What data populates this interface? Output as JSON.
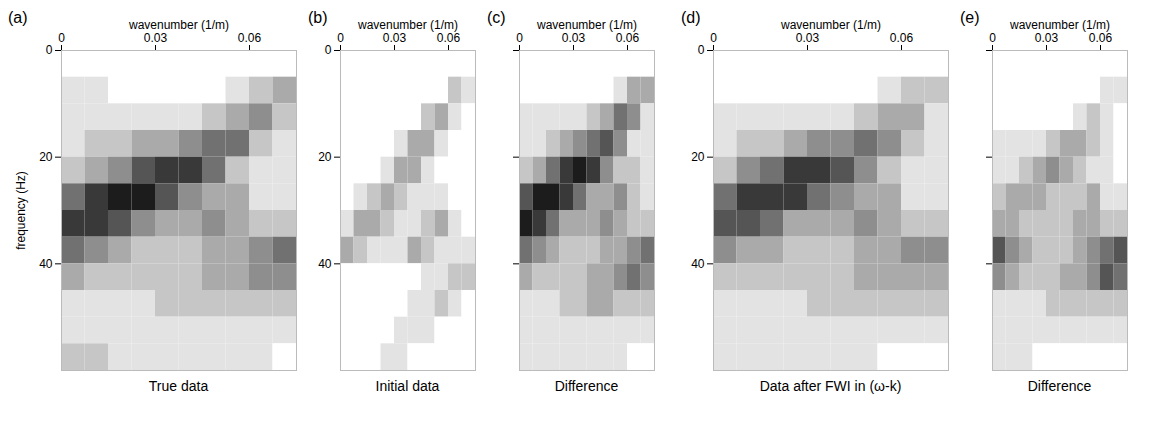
{
  "chart_data": [
    {
      "type": "heatmap",
      "panel": "(a)",
      "title": "True data",
      "x_label": "wavenumber (1/m)",
      "y_label": "frequency (Hz)",
      "xlim": [
        0,
        0.075
      ],
      "ylim": [
        0,
        60
      ],
      "xticks": [
        0,
        0.03,
        0.06
      ],
      "yticks": [
        0,
        20,
        40
      ],
      "x_edges": [
        0,
        0.0075,
        0.015,
        0.0225,
        0.03,
        0.0375,
        0.045,
        0.0525,
        0.06,
        0.0675,
        0.075
      ],
      "y_edges": [
        0,
        5,
        10,
        15,
        20,
        25,
        30,
        35,
        40,
        45,
        50,
        55,
        60
      ],
      "zlim": [
        0,
        9
      ],
      "color": "#000000",
      "cells": [
        [
          0,
          0,
          0,
          0,
          0,
          0,
          0,
          0,
          0,
          0
        ],
        [
          1,
          1,
          0,
          0,
          0,
          0,
          0,
          1,
          2,
          3
        ],
        [
          1,
          1,
          1,
          1,
          1,
          1,
          2,
          3,
          4,
          2
        ],
        [
          1,
          2,
          2,
          3,
          3,
          4,
          5,
          5,
          2,
          1
        ],
        [
          2,
          3,
          4,
          6,
          7,
          7,
          5,
          2,
          1,
          1
        ],
        [
          5,
          7,
          8,
          8,
          6,
          4,
          3,
          3,
          1,
          1
        ],
        [
          7,
          7,
          6,
          4,
          3,
          3,
          4,
          3,
          2,
          2
        ],
        [
          5,
          4,
          3,
          2,
          2,
          2,
          3,
          3,
          4,
          5
        ],
        [
          3,
          2,
          2,
          2,
          2,
          2,
          3,
          3,
          4,
          4
        ],
        [
          1,
          1,
          1,
          1,
          2,
          2,
          2,
          2,
          2,
          2
        ],
        [
          1,
          1,
          1,
          1,
          1,
          1,
          1,
          1,
          1,
          1
        ],
        [
          2,
          2,
          1,
          1,
          1,
          1,
          1,
          1,
          1,
          0
        ]
      ]
    },
    {
      "type": "heatmap",
      "panel": "(b)",
      "title": "Initial data",
      "x_label": "wavenumber (1/m)",
      "xlim": [
        0,
        0.075
      ],
      "ylim": [
        0,
        60
      ],
      "xticks": [
        0,
        0.03,
        0.06
      ],
      "yticks": [
        0,
        20,
        40
      ],
      "x_edges": [
        0,
        0.0075,
        0.015,
        0.0225,
        0.03,
        0.0375,
        0.045,
        0.0525,
        0.06,
        0.0675,
        0.075
      ],
      "y_edges": [
        0,
        5,
        10,
        15,
        20,
        25,
        30,
        35,
        40,
        45,
        50,
        55,
        60
      ],
      "zlim": [
        0,
        9
      ],
      "color": "#000000",
      "cells": [
        [
          0,
          0,
          0,
          0,
          0,
          0,
          0,
          0,
          0,
          0
        ],
        [
          0,
          0,
          0,
          0,
          0,
          0,
          0,
          0,
          2,
          1
        ],
        [
          0,
          0,
          0,
          0,
          0,
          0,
          2,
          3,
          1,
          0
        ],
        [
          0,
          0,
          0,
          0,
          1,
          3,
          3,
          1,
          0,
          0
        ],
        [
          0,
          0,
          0,
          1,
          3,
          3,
          1,
          0,
          0,
          0
        ],
        [
          0,
          1,
          2,
          3,
          2,
          1,
          1,
          1,
          0,
          0
        ],
        [
          1,
          3,
          3,
          2,
          1,
          1,
          2,
          3,
          1,
          0
        ],
        [
          3,
          2,
          1,
          1,
          1,
          3,
          2,
          1,
          1,
          1
        ],
        [
          0,
          0,
          0,
          0,
          0,
          0,
          1,
          1,
          2,
          2
        ],
        [
          0,
          0,
          0,
          0,
          0,
          1,
          1,
          2,
          1,
          0
        ],
        [
          0,
          0,
          0,
          0,
          1,
          1,
          1,
          0,
          0,
          0
        ],
        [
          0,
          0,
          0,
          1,
          1,
          0,
          0,
          0,
          0,
          0
        ]
      ]
    },
    {
      "type": "heatmap",
      "panel": "(c)",
      "title": "Difference",
      "x_label": "wavenumber (1/m)",
      "tick_labels": "x",
      "xlim": [
        0,
        0.075
      ],
      "ylim": [
        0,
        60
      ],
      "xticks": [
        0,
        0.03,
        0.06
      ],
      "yticks": [
        0,
        20,
        40
      ],
      "x_edges": [
        0,
        0.0075,
        0.015,
        0.0225,
        0.03,
        0.0375,
        0.045,
        0.0525,
        0.06,
        0.0675,
        0.075
      ],
      "y_edges": [
        0,
        5,
        10,
        15,
        20,
        25,
        30,
        35,
        40,
        45,
        50,
        55,
        60
      ],
      "zlim": [
        0,
        9
      ],
      "color": "#000000",
      "cells": [
        [
          0,
          0,
          0,
          0,
          0,
          0,
          0,
          0,
          0,
          0
        ],
        [
          0,
          0,
          0,
          0,
          0,
          0,
          0,
          1,
          3,
          3
        ],
        [
          1,
          1,
          1,
          1,
          1,
          2,
          3,
          5,
          4,
          1
        ],
        [
          1,
          1,
          2,
          3,
          4,
          5,
          6,
          4,
          1,
          1
        ],
        [
          2,
          3,
          5,
          7,
          8,
          7,
          4,
          2,
          2,
          1
        ],
        [
          6,
          8,
          8,
          7,
          5,
          3,
          3,
          4,
          2,
          1
        ],
        [
          8,
          7,
          5,
          3,
          3,
          3,
          4,
          3,
          2,
          2
        ],
        [
          5,
          4,
          3,
          2,
          2,
          2,
          3,
          3,
          4,
          5
        ],
        [
          3,
          2,
          2,
          2,
          2,
          3,
          3,
          4,
          5,
          4
        ],
        [
          1,
          1,
          1,
          2,
          2,
          3,
          3,
          2,
          2,
          2
        ],
        [
          1,
          1,
          1,
          1,
          1,
          1,
          1,
          1,
          1,
          1
        ],
        [
          1,
          1,
          1,
          1,
          1,
          1,
          1,
          1,
          0,
          0
        ]
      ]
    },
    {
      "type": "heatmap",
      "panel": "(d)",
      "title": "Data after FWI in (ω-k)",
      "x_label": "wavenumber (1/m)",
      "xlim": [
        0,
        0.075
      ],
      "ylim": [
        0,
        60
      ],
      "xticks": [
        0,
        0.03,
        0.06
      ],
      "yticks": [
        0,
        20,
        40
      ],
      "x_edges": [
        0,
        0.0075,
        0.015,
        0.0225,
        0.03,
        0.0375,
        0.045,
        0.0525,
        0.06,
        0.0675,
        0.075
      ],
      "y_edges": [
        0,
        5,
        10,
        15,
        20,
        25,
        30,
        35,
        40,
        45,
        50,
        55,
        60
      ],
      "zlim": [
        0,
        9
      ],
      "color": "#000000",
      "cells": [
        [
          0,
          0,
          0,
          0,
          0,
          0,
          0,
          0,
          0,
          0
        ],
        [
          0,
          0,
          0,
          0,
          0,
          0,
          0,
          1,
          2,
          2
        ],
        [
          1,
          1,
          1,
          1,
          1,
          1,
          2,
          3,
          3,
          1
        ],
        [
          1,
          2,
          2,
          3,
          4,
          4,
          5,
          4,
          2,
          1
        ],
        [
          2,
          4,
          5,
          7,
          7,
          6,
          4,
          2,
          1,
          1
        ],
        [
          5,
          7,
          7,
          7,
          5,
          4,
          3,
          3,
          1,
          1
        ],
        [
          6,
          6,
          5,
          3,
          3,
          3,
          4,
          3,
          2,
          2
        ],
        [
          4,
          3,
          3,
          2,
          2,
          2,
          3,
          3,
          4,
          4
        ],
        [
          2,
          2,
          2,
          2,
          2,
          2,
          3,
          3,
          3,
          3
        ],
        [
          1,
          1,
          1,
          1,
          2,
          2,
          2,
          2,
          2,
          2
        ],
        [
          1,
          1,
          1,
          1,
          1,
          1,
          1,
          1,
          1,
          1
        ],
        [
          1,
          1,
          1,
          1,
          1,
          1,
          1,
          0,
          0,
          0
        ]
      ]
    },
    {
      "type": "heatmap",
      "panel": "(e)",
      "title": "Difference",
      "x_label": "wavenumber (1/m)",
      "tick_labels": "x",
      "xlim": [
        0,
        0.075
      ],
      "ylim": [
        0,
        60
      ],
      "xticks": [
        0,
        0.03,
        0.06
      ],
      "yticks": [
        0,
        20,
        40
      ],
      "x_edges": [
        0,
        0.0075,
        0.015,
        0.0225,
        0.03,
        0.0375,
        0.045,
        0.0525,
        0.06,
        0.0675,
        0.075
      ],
      "y_edges": [
        0,
        5,
        10,
        15,
        20,
        25,
        30,
        35,
        40,
        45,
        50,
        55,
        60
      ],
      "zlim": [
        0,
        9
      ],
      "color": "#000000",
      "cells": [
        [
          0,
          0,
          0,
          0,
          0,
          0,
          0,
          0,
          0,
          0
        ],
        [
          0,
          0,
          0,
          0,
          0,
          0,
          0,
          0,
          1,
          1
        ],
        [
          0,
          0,
          0,
          0,
          0,
          0,
          1,
          2,
          1,
          0
        ],
        [
          1,
          1,
          1,
          1,
          2,
          3,
          3,
          2,
          1,
          0
        ],
        [
          1,
          1,
          2,
          3,
          4,
          3,
          2,
          1,
          1,
          0
        ],
        [
          2,
          3,
          3,
          3,
          2,
          2,
          2,
          3,
          1,
          1
        ],
        [
          3,
          3,
          2,
          2,
          2,
          2,
          3,
          3,
          2,
          2
        ],
        [
          6,
          4,
          3,
          2,
          2,
          2,
          3,
          4,
          5,
          6
        ],
        [
          4,
          3,
          2,
          2,
          2,
          3,
          3,
          4,
          6,
          5
        ],
        [
          1,
          1,
          1,
          1,
          2,
          2,
          2,
          2,
          2,
          2
        ],
        [
          1,
          1,
          1,
          1,
          1,
          1,
          1,
          1,
          1,
          1
        ],
        [
          1,
          1,
          1,
          0,
          0,
          0,
          0,
          0,
          0,
          0
        ]
      ]
    }
  ]
}
